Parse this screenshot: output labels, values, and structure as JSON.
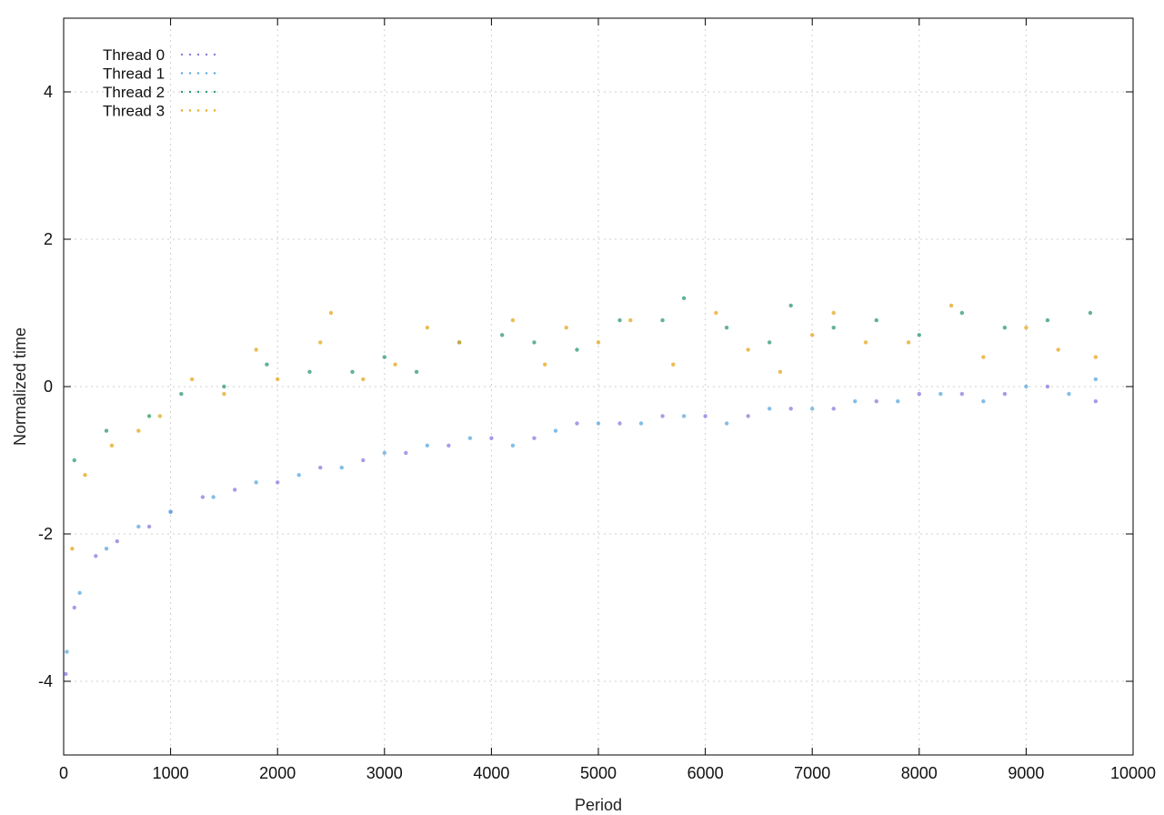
{
  "chart_data": {
    "type": "scatter",
    "xlabel": "Period",
    "ylabel": "Normalized time",
    "xlim": [
      0,
      10000
    ],
    "ylim": [
      -5,
      5
    ],
    "x_ticks": [
      "0",
      "1000",
      "2000",
      "3000",
      "4000",
      "5000",
      "6000",
      "7000",
      "8000",
      "9000",
      "10000"
    ],
    "y_ticks": [
      "-4",
      "-2",
      "0",
      "2",
      "4"
    ],
    "grid": true,
    "legend_position": "top-left",
    "series": [
      {
        "name": "Thread 0",
        "color": "#8a7be0",
        "points": [
          [
            20,
            -3.9
          ],
          [
            100,
            -3.0
          ],
          [
            300,
            -2.3
          ],
          [
            500,
            -2.1
          ],
          [
            800,
            -1.9
          ],
          [
            1000,
            -1.7
          ],
          [
            1300,
            -1.5
          ],
          [
            1600,
            -1.4
          ],
          [
            2000,
            -1.3
          ],
          [
            2400,
            -1.1
          ],
          [
            2800,
            -1.0
          ],
          [
            3200,
            -0.9
          ],
          [
            3600,
            -0.8
          ],
          [
            4000,
            -0.7
          ],
          [
            4400,
            -0.7
          ],
          [
            4800,
            -0.5
          ],
          [
            5200,
            -0.5
          ],
          [
            5600,
            -0.4
          ],
          [
            6000,
            -0.4
          ],
          [
            6400,
            -0.4
          ],
          [
            6800,
            -0.3
          ],
          [
            7200,
            -0.3
          ],
          [
            7600,
            -0.2
          ],
          [
            8000,
            -0.1
          ],
          [
            8400,
            -0.1
          ],
          [
            8800,
            -0.1
          ],
          [
            9200,
            0.0
          ],
          [
            9650,
            -0.2
          ]
        ]
      },
      {
        "name": "Thread 1",
        "color": "#5aa8e0",
        "points": [
          [
            30,
            -3.6
          ],
          [
            150,
            -2.8
          ],
          [
            400,
            -2.2
          ],
          [
            700,
            -1.9
          ],
          [
            1000,
            -1.7
          ],
          [
            1400,
            -1.5
          ],
          [
            1800,
            -1.3
          ],
          [
            2200,
            -1.2
          ],
          [
            2600,
            -1.1
          ],
          [
            3000,
            -0.9
          ],
          [
            3400,
            -0.8
          ],
          [
            3800,
            -0.7
          ],
          [
            4200,
            -0.8
          ],
          [
            4600,
            -0.6
          ],
          [
            5000,
            -0.5
          ],
          [
            5400,
            -0.5
          ],
          [
            5800,
            -0.4
          ],
          [
            6200,
            -0.5
          ],
          [
            6600,
            -0.3
          ],
          [
            7000,
            -0.3
          ],
          [
            7400,
            -0.2
          ],
          [
            7800,
            -0.2
          ],
          [
            8200,
            -0.1
          ],
          [
            8600,
            -0.2
          ],
          [
            9000,
            0.0
          ],
          [
            9400,
            -0.1
          ],
          [
            9650,
            0.1
          ]
        ]
      },
      {
        "name": "Thread 2",
        "color": "#2e9a6e",
        "points": [
          [
            100,
            -1.0
          ],
          [
            400,
            -0.6
          ],
          [
            800,
            -0.4
          ],
          [
            1100,
            -0.1
          ],
          [
            1500,
            0.0
          ],
          [
            1900,
            0.3
          ],
          [
            2300,
            0.2
          ],
          [
            2700,
            0.2
          ],
          [
            3000,
            0.4
          ],
          [
            3300,
            0.2
          ],
          [
            3700,
            0.6
          ],
          [
            4100,
            0.7
          ],
          [
            4400,
            0.6
          ],
          [
            4800,
            0.5
          ],
          [
            5200,
            0.9
          ],
          [
            5600,
            0.9
          ],
          [
            5800,
            1.2
          ],
          [
            6200,
            0.8
          ],
          [
            6600,
            0.6
          ],
          [
            6800,
            1.1
          ],
          [
            7200,
            0.8
          ],
          [
            7600,
            0.9
          ],
          [
            8000,
            0.7
          ],
          [
            8400,
            1.0
          ],
          [
            8800,
            0.8
          ],
          [
            9200,
            0.9
          ],
          [
            9600,
            1.0
          ]
        ]
      },
      {
        "name": "Thread 3",
        "color": "#e6a61c",
        "points": [
          [
            80,
            -2.2
          ],
          [
            200,
            -1.2
          ],
          [
            450,
            -0.8
          ],
          [
            700,
            -0.6
          ],
          [
            900,
            -0.4
          ],
          [
            1200,
            0.1
          ],
          [
            1500,
            -0.1
          ],
          [
            1800,
            0.5
          ],
          [
            2000,
            0.1
          ],
          [
            2400,
            0.6
          ],
          [
            2500,
            1.0
          ],
          [
            2800,
            0.1
          ],
          [
            3100,
            0.3
          ],
          [
            3400,
            0.8
          ],
          [
            3700,
            0.6
          ],
          [
            4200,
            0.9
          ],
          [
            4500,
            0.3
          ],
          [
            4700,
            0.8
          ],
          [
            5000,
            0.6
          ],
          [
            5300,
            0.9
          ],
          [
            5700,
            0.3
          ],
          [
            6100,
            1.0
          ],
          [
            6400,
            0.5
          ],
          [
            6700,
            0.2
          ],
          [
            7000,
            0.7
          ],
          [
            7200,
            1.0
          ],
          [
            7500,
            0.6
          ],
          [
            7900,
            0.6
          ],
          [
            8300,
            1.1
          ],
          [
            8600,
            0.4
          ],
          [
            9000,
            0.8
          ],
          [
            9300,
            0.5
          ],
          [
            9650,
            0.4
          ]
        ]
      }
    ]
  }
}
